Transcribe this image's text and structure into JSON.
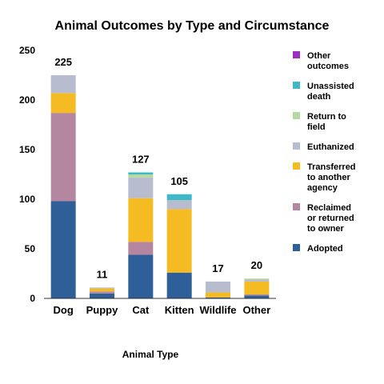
{
  "chart_data": {
    "type": "bar",
    "stacked": true,
    "title": "Animal Outcomes by Type and Circumstance",
    "xlabel": "Animal Type",
    "ylabel": "",
    "ylim": [
      0,
      250
    ],
    "yticks": [
      0,
      50,
      100,
      150,
      200,
      250
    ],
    "grid": false,
    "legend_position": "right",
    "categories": [
      "Dog",
      "Puppy",
      "Cat",
      "Kitten",
      "Wildlife",
      "Other"
    ],
    "totals": [
      225,
      11,
      127,
      105,
      17,
      20
    ],
    "series": [
      {
        "name": "Adopted",
        "color": "#2f5f98",
        "values": [
          98,
          5,
          44,
          26,
          1,
          3
        ]
      },
      {
        "name": "Reclaimed or returned to owner",
        "color": "#b4869f",
        "values": [
          89,
          2,
          13,
          0,
          0,
          1
        ]
      },
      {
        "name": "Transferred to another agency",
        "color": "#f5bb22",
        "values": [
          20,
          3,
          44,
          64,
          5,
          13
        ]
      },
      {
        "name": "Euthanized",
        "color": "#b8bccf",
        "values": [
          18,
          1,
          21,
          9,
          11,
          2
        ]
      },
      {
        "name": "Return to field",
        "color": "#b3dba0",
        "values": [
          0,
          0,
          3,
          0,
          0,
          1
        ]
      },
      {
        "name": "Unassisted death",
        "color": "#3fb9c5",
        "values": [
          0,
          0,
          2,
          6,
          0,
          0
        ]
      },
      {
        "name": "Other outcomes",
        "color": "#9b2fbf",
        "values": [
          0,
          0,
          0,
          0,
          0,
          0
        ]
      }
    ],
    "legend_lines": [
      {
        "series": "Other outcomes",
        "lines": [
          "Other",
          "outcomes"
        ]
      },
      {
        "series": "Unassisted death",
        "lines": [
          "Unassisted",
          "death"
        ]
      },
      {
        "series": "Return to field",
        "lines": [
          "Return to",
          "field"
        ]
      },
      {
        "series": "Euthanized",
        "lines": [
          "Euthanized"
        ]
      },
      {
        "series": "Transferred to another agency",
        "lines": [
          "Transferred",
          "to another",
          "agency"
        ]
      },
      {
        "series": "Reclaimed or returned to owner",
        "lines": [
          "Reclaimed",
          "or returned",
          "to owner"
        ]
      },
      {
        "series": "Adopted",
        "lines": [
          "Adopted"
        ]
      }
    ]
  }
}
